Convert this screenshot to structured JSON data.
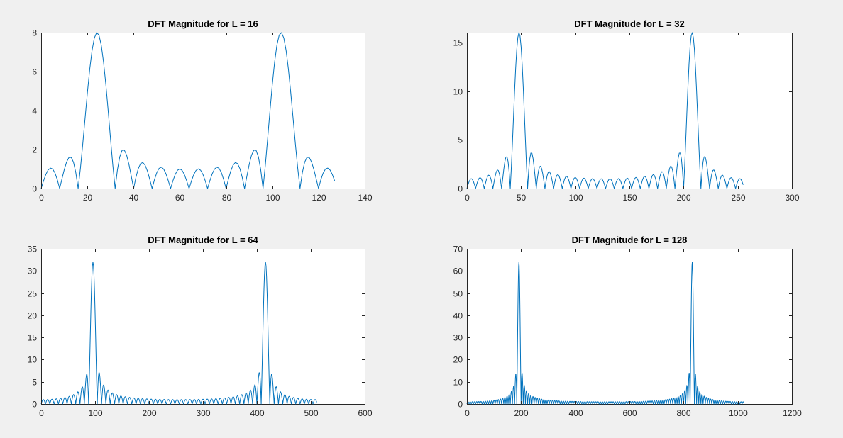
{
  "figure": {
    "background": "#f0f0f0",
    "axes_background": "#ffffff",
    "line_color": "#0072bd"
  },
  "chart_data": [
    {
      "type": "line",
      "title": "DFT Magnitude for L = 16",
      "xlabel": "",
      "ylabel": "",
      "L": 16,
      "N": 128,
      "peak_bins": [
        24,
        104
      ],
      "x_range": [
        0,
        127
      ],
      "xlim": [
        0,
        140
      ],
      "ylim": [
        0,
        8
      ],
      "xticks": [
        0,
        20,
        40,
        60,
        80,
        100,
        120,
        140
      ],
      "yticks": [
        0,
        2,
        4,
        6,
        8
      ],
      "peak_value": 8,
      "grid": false,
      "legend": "none"
    },
    {
      "type": "line",
      "title": "DFT Magnitude for L = 32",
      "xlabel": "",
      "ylabel": "",
      "L": 32,
      "N": 256,
      "peak_bins": [
        48,
        208
      ],
      "x_range": [
        0,
        255
      ],
      "xlim": [
        0,
        300
      ],
      "ylim": [
        0,
        16
      ],
      "xticks": [
        0,
        50,
        100,
        150,
        200,
        250,
        300
      ],
      "yticks": [
        0,
        5,
        10,
        15
      ],
      "peak_value": 16,
      "grid": false,
      "legend": "none"
    },
    {
      "type": "line",
      "title": "DFT Magnitude for L = 64",
      "xlabel": "",
      "ylabel": "",
      "L": 64,
      "N": 512,
      "peak_bins": [
        96,
        416
      ],
      "x_range": [
        0,
        511
      ],
      "xlim": [
        0,
        600
      ],
      "ylim": [
        0,
        35
      ],
      "xticks": [
        0,
        100,
        200,
        300,
        400,
        500,
        600
      ],
      "yticks": [
        0,
        5,
        10,
        15,
        20,
        25,
        30,
        35
      ],
      "peak_value": 32,
      "grid": false,
      "legend": "none"
    },
    {
      "type": "line",
      "title": "DFT Magnitude for L = 128",
      "xlabel": "",
      "ylabel": "",
      "L": 128,
      "N": 1024,
      "peak_bins": [
        192,
        832
      ],
      "x_range": [
        0,
        1023
      ],
      "xlim": [
        0,
        1200
      ],
      "ylim": [
        0,
        70
      ],
      "xticks": [
        0,
        200,
        400,
        600,
        800,
        1000,
        1200
      ],
      "yticks": [
        0,
        10,
        20,
        30,
        40,
        50,
        60,
        70
      ],
      "peak_value": 64,
      "grid": false,
      "legend": "none"
    }
  ]
}
